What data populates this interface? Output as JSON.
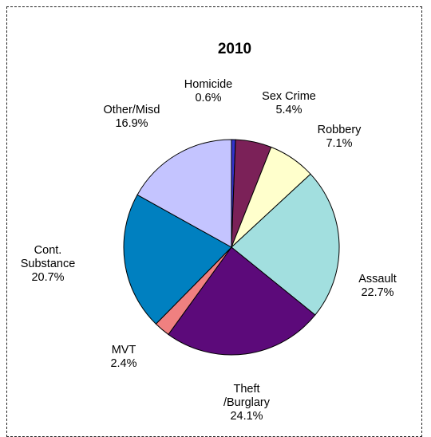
{
  "chart_data": {
    "type": "pie",
    "title": "2010",
    "start_angle_deg": 0,
    "direction": "clockwise",
    "slices": [
      {
        "label": "Homicide",
        "label_lines": [
          "Homicide",
          "0.6%"
        ],
        "value": 0.6,
        "color": "#3333cc"
      },
      {
        "label": "Sex Crime",
        "label_lines": [
          "Sex Crime",
          "5.4%"
        ],
        "value": 5.4,
        "color": "#7b2158"
      },
      {
        "label": "Robbery",
        "label_lines": [
          "Robbery",
          "7.1%"
        ],
        "value": 7.1,
        "color": "#ffffcc"
      },
      {
        "label": "Assault",
        "label_lines": [
          "Assault",
          "22.7%"
        ],
        "value": 22.7,
        "color": "#a2dfdf"
      },
      {
        "label": "Theft /Burglary",
        "label_lines": [
          "Theft",
          "/Burglary",
          "24.1%"
        ],
        "value": 24.1,
        "color": "#5c0a7a"
      },
      {
        "label": "MVT",
        "label_lines": [
          "MVT",
          "2.4%"
        ],
        "value": 2.4,
        "color": "#f08080"
      },
      {
        "label": "Cont. Substance",
        "label_lines": [
          "Cont.",
          "Substance",
          "20.7%"
        ],
        "value": 20.7,
        "color": "#0080c0"
      },
      {
        "label": "Other/Misd",
        "label_lines": [
          "Other/Misd",
          "16.9%"
        ],
        "value": 16.9,
        "color": "#c4c4ff"
      }
    ]
  }
}
